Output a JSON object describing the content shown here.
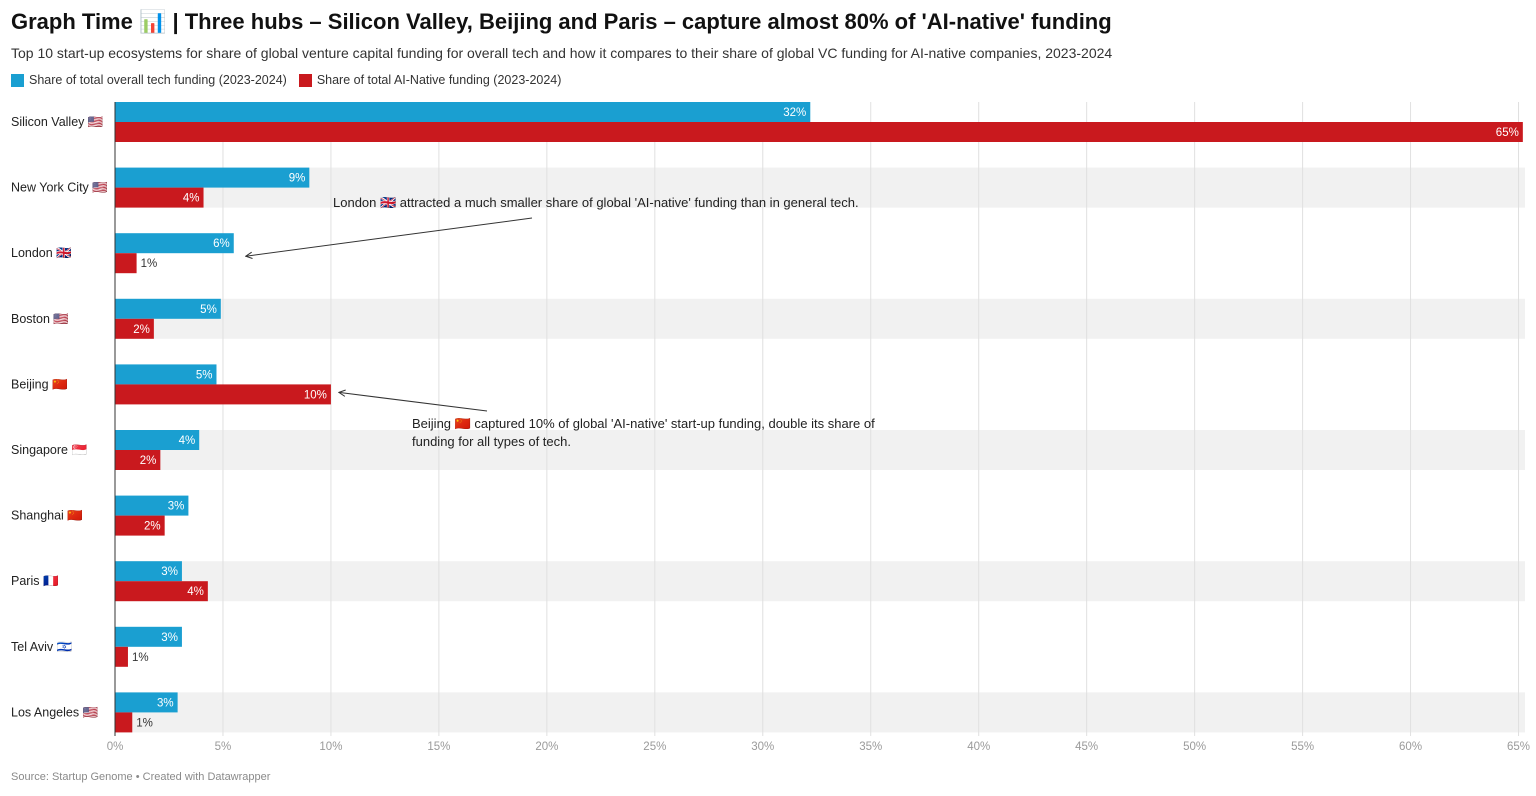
{
  "title": "Graph Time 📊 | Three hubs – Silicon Valley, Beijing and Paris – capture almost 80% of 'AI-native' funding",
  "subtitle": "Top 10 start-up ecosystems for share of global venture capital funding for overall tech and how it compares to their share of global VC funding for AI-native companies, 2023-2024",
  "notes": "Source: Startup Genome • Created with Datawrapper",
  "chart_data": {
    "type": "bar",
    "orientation": "horizontal",
    "categories": [
      "Silicon Valley 🇺🇸",
      "New York City 🇺🇸",
      "London 🇬🇧",
      "Boston 🇺🇸",
      "Beijing 🇨🇳",
      "Singapore 🇸🇬",
      "Shanghai 🇨🇳",
      "Paris 🇫🇷",
      "Tel Aviv 🇮🇱",
      "Los Angeles 🇺🇸"
    ],
    "series": [
      {
        "name": "Share of total overall tech funding (2023-2024)",
        "color": "#1a9fd1",
        "values": [
          32.2,
          9.0,
          5.5,
          4.9,
          4.7,
          3.9,
          3.4,
          3.1,
          3.1,
          2.9
        ],
        "labels": [
          "32%",
          "9%",
          "6%",
          "5%",
          "5%",
          "4%",
          "3%",
          "3%",
          "3%",
          "3%"
        ]
      },
      {
        "name": "Share of total AI-Native funding (2023-2024)",
        "color": "#c9191e",
        "values": [
          65.2,
          4.1,
          1.0,
          1.8,
          10.0,
          2.1,
          2.3,
          4.3,
          0.6,
          0.8
        ],
        "labels": [
          "65%",
          "4%",
          "1%",
          "2%",
          "10%",
          "2%",
          "2%",
          "4%",
          "1%",
          "1%"
        ]
      }
    ],
    "xlim": [
      0,
      65.3
    ],
    "x_ticks": [
      0,
      5,
      10,
      15,
      20,
      25,
      30,
      35,
      40,
      45,
      50,
      55,
      60,
      65
    ],
    "x_tick_labels": [
      "0%",
      "5%",
      "10%",
      "15%",
      "20%",
      "25%",
      "30%",
      "35%",
      "40%",
      "45%",
      "50%",
      "55%",
      "60%",
      "65%"
    ],
    "grid": "vertical",
    "legend": "top-left",
    "annotations": [
      {
        "text_lines": [
          "London 🇬🇧 attracted a much smaller share of global 'AI-native' funding than in general tech."
        ],
        "target_category": "London 🇬🇧",
        "target_series": 0
      },
      {
        "text_lines": [
          "Beijing 🇨🇳 captured 10% of global 'AI-native' start-up funding, double its share of",
          "funding for all types of tech."
        ],
        "target_category": "Beijing 🇨🇳",
        "target_series": 1
      }
    ]
  }
}
